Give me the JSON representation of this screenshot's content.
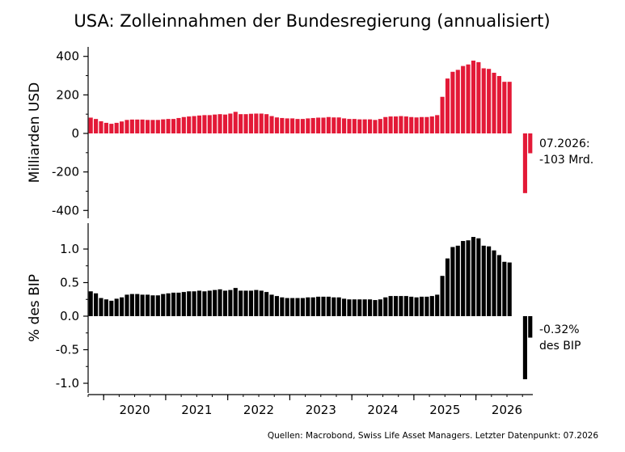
{
  "chart_data": {
    "type": "bar",
    "title": "USA: Zolleinnahmen der Bundesregierung (annualisiert)",
    "source": "Quellen: Macrobond, Swiss Life Asset Managers. Letzter Datenpunkt: 07.2026",
    "x_tick_labels": [
      "2020",
      "2021",
      "2022",
      "2023",
      "2024",
      "2025",
      "2026"
    ],
    "period_start": "2019-10",
    "period_end": "2026-07",
    "panels": [
      {
        "id": "usd",
        "ylabel": "Milliarden USD",
        "color": "#e31937",
        "ylim": [
          -440,
          450
        ],
        "yticks": [
          400,
          200,
          0,
          -200,
          -400
        ],
        "ytick_labels": [
          "400",
          "200",
          "0",
          "-200",
          "-400"
        ],
        "annotation": [
          "07.2026:",
          "-103 Mrd."
        ],
        "values": [
          82,
          75,
          63,
          55,
          50,
          55,
          62,
          70,
          72,
          72,
          72,
          70,
          70,
          70,
          73,
          75,
          75,
          80,
          85,
          88,
          90,
          93,
          95,
          95,
          98,
          100,
          98,
          103,
          112,
          100,
          100,
          102,
          103,
          103,
          100,
          90,
          83,
          80,
          78,
          78,
          75,
          75,
          78,
          80,
          82,
          82,
          85,
          83,
          83,
          78,
          75,
          75,
          73,
          73,
          73,
          70,
          75,
          85,
          88,
          88,
          90,
          88,
          85,
          83,
          85,
          85,
          88,
          95,
          190,
          285,
          320,
          330,
          350,
          358,
          378,
          370,
          338,
          335,
          315,
          298,
          268,
          268,
          0,
          0,
          -310,
          -103
        ]
      },
      {
        "id": "gdp",
        "ylabel": "% des BIP",
        "color": "#000000",
        "ylim": [
          -1.15,
          1.38
        ],
        "yticks": [
          1.0,
          0.5,
          0.0,
          -0.5,
          -1.0
        ],
        "ytick_labels": [
          "1.0",
          "0.5",
          "0.0",
          "-0.5",
          "-1.0"
        ],
        "annotation": [
          "-0.32%",
          "des BIP"
        ],
        "values": [
          0.37,
          0.34,
          0.27,
          0.25,
          0.23,
          0.26,
          0.28,
          0.32,
          0.33,
          0.33,
          0.32,
          0.32,
          0.31,
          0.31,
          0.33,
          0.34,
          0.35,
          0.35,
          0.36,
          0.37,
          0.37,
          0.38,
          0.37,
          0.38,
          0.39,
          0.4,
          0.38,
          0.39,
          0.42,
          0.38,
          0.38,
          0.38,
          0.39,
          0.38,
          0.36,
          0.32,
          0.3,
          0.28,
          0.27,
          0.27,
          0.27,
          0.27,
          0.28,
          0.28,
          0.29,
          0.29,
          0.29,
          0.28,
          0.28,
          0.26,
          0.25,
          0.25,
          0.25,
          0.25,
          0.25,
          0.24,
          0.25,
          0.28,
          0.3,
          0.3,
          0.3,
          0.3,
          0.29,
          0.28,
          0.29,
          0.29,
          0.3,
          0.32,
          0.6,
          0.86,
          1.03,
          1.05,
          1.12,
          1.13,
          1.18,
          1.16,
          1.05,
          1.04,
          0.98,
          0.91,
          0.81,
          0.8,
          0,
          0,
          -0.94,
          -0.32
        ]
      }
    ]
  }
}
